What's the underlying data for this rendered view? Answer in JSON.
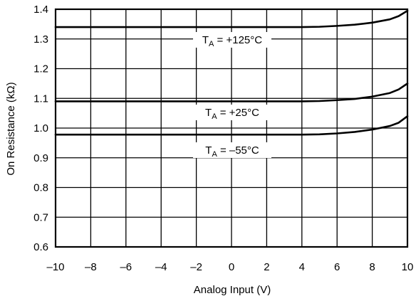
{
  "chart_data": {
    "type": "line",
    "xlabel": "Analog Input (V)",
    "ylabel": "On Resistance (kΩ)",
    "xlim": [
      -10,
      10
    ],
    "ylim": [
      0.6,
      1.4
    ],
    "x_ticks": [
      -10,
      -8,
      -6,
      -4,
      -2,
      0,
      2,
      4,
      6,
      8,
      10
    ],
    "x_tick_labels": [
      "–10",
      "–8",
      "–6",
      "–4",
      "–2",
      "0",
      "2",
      "4",
      "6",
      "8",
      "10"
    ],
    "y_ticks": [
      0.6,
      0.7,
      0.8,
      0.9,
      1.0,
      1.1,
      1.2,
      1.3,
      1.4
    ],
    "y_tick_labels": [
      "0.6",
      "0.7",
      "0.8",
      "0.9",
      "1.0",
      "1.1",
      "1.2",
      "1.3",
      "1.4"
    ],
    "grid": true,
    "series": [
      {
        "name": "TA = +125°C",
        "label_main": "T",
        "label_sub": "A",
        "label_rest": " = +125°C",
        "x": [
          -10,
          0,
          4,
          5,
          6,
          7,
          8,
          9,
          9.5,
          10
        ],
        "y": [
          1.34,
          1.34,
          1.34,
          1.341,
          1.344,
          1.348,
          1.355,
          1.366,
          1.377,
          1.395
        ]
      },
      {
        "name": "TA = +25°C",
        "label_main": "T",
        "label_sub": "A",
        "label_rest": " = +25°C",
        "x": [
          -10,
          0,
          4,
          5,
          6,
          7,
          8,
          9,
          9.5,
          10
        ],
        "y": [
          1.09,
          1.09,
          1.09,
          1.091,
          1.094,
          1.098,
          1.106,
          1.118,
          1.13,
          1.15
        ]
      },
      {
        "name": "TA = –55°C",
        "label_main": "T",
        "label_sub": "A",
        "label_rest": " = –55°C",
        "x": [
          -10,
          0,
          4,
          5,
          6,
          7,
          8,
          9,
          9.5,
          10
        ],
        "y": [
          0.978,
          0.978,
          0.978,
          0.979,
          0.982,
          0.987,
          0.995,
          1.007,
          1.018,
          1.04
        ]
      }
    ]
  }
}
